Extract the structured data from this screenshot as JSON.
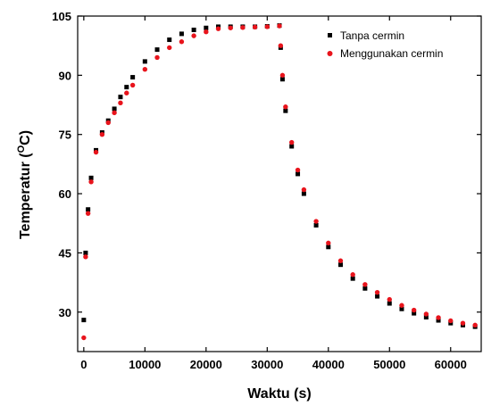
{
  "chart_data": {
    "type": "scatter",
    "title": "",
    "xlabel": "Waktu (s)",
    "ylabel_main": "Temperatur (",
    "ylabel_sup": "O",
    "ylabel_unit": "C)",
    "xlim": [
      -1000,
      65000
    ],
    "ylim": [
      20,
      105
    ],
    "x_ticks": [
      "0",
      "10000",
      "20000",
      "30000",
      "40000",
      "50000",
      "60000"
    ],
    "x_tick_values": [
      0,
      10000,
      20000,
      30000,
      40000,
      50000,
      60000
    ],
    "y_ticks": [
      "30",
      "45",
      "60",
      "75",
      "90",
      "105"
    ],
    "y_tick_values": [
      30,
      45,
      60,
      75,
      90,
      105
    ],
    "legend_position": "top-right",
    "series": [
      {
        "name": "Tanpa cermin",
        "color": "#000000",
        "marker": "square",
        "x": [
          0,
          300,
          700,
          1200,
          2000,
          3000,
          4000,
          5000,
          6000,
          7000,
          8000,
          10000,
          12000,
          14000,
          16000,
          18000,
          20000,
          22000,
          24000,
          26000,
          28000,
          30000,
          32000,
          32200,
          32500,
          33000,
          34000,
          35000,
          36000,
          38000,
          40000,
          42000,
          44000,
          46000,
          48000,
          50000,
          52000,
          54000,
          56000,
          58000,
          60000,
          62000,
          64000
        ],
        "y": [
          28,
          45,
          56,
          64,
          71,
          75.5,
          78.5,
          81.5,
          84.5,
          87,
          89.5,
          93.5,
          96.5,
          99,
          100.5,
          101.5,
          102,
          102.3,
          102.3,
          102.3,
          102.3,
          102.4,
          102.6,
          97,
          89,
          81,
          72,
          65,
          60,
          52,
          46.5,
          42,
          38.5,
          36,
          34,
          32.2,
          30.8,
          29.7,
          28.7,
          27.9,
          27.2,
          26.7,
          26.3
        ]
      },
      {
        "name": "Menggunakan cermin",
        "color": "#e8141c",
        "marker": "circle",
        "x": [
          0,
          300,
          700,
          1200,
          2000,
          3000,
          4000,
          5000,
          6000,
          7000,
          8000,
          10000,
          12000,
          14000,
          16000,
          18000,
          20000,
          22000,
          24000,
          26000,
          28000,
          30000,
          32000,
          32200,
          32500,
          33000,
          34000,
          35000,
          36000,
          38000,
          40000,
          42000,
          44000,
          46000,
          48000,
          50000,
          52000,
          54000,
          56000,
          58000,
          60000,
          62000,
          64000
        ],
        "y": [
          23.5,
          44,
          55,
          63,
          70.5,
          75,
          78,
          80.5,
          83,
          85.5,
          87.5,
          91.5,
          94.5,
          97,
          98.5,
          100,
          101,
          101.8,
          102,
          102.1,
          102.2,
          102.3,
          102.5,
          97.5,
          90,
          82,
          73,
          66,
          61,
          53,
          47.5,
          43,
          39.5,
          37,
          35,
          33.2,
          31.7,
          30.5,
          29.5,
          28.6,
          27.8,
          27.2,
          26.7
        ]
      }
    ]
  }
}
